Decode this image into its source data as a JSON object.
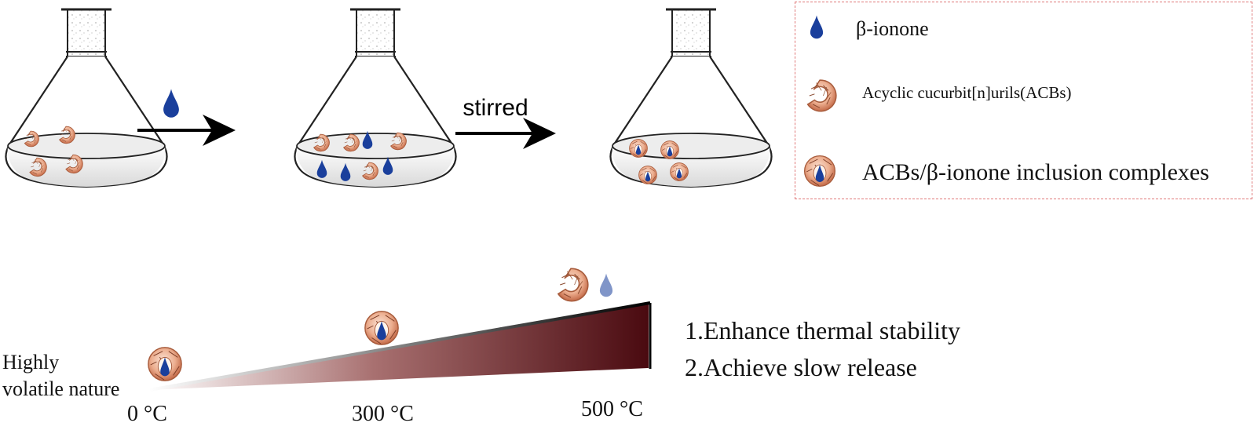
{
  "process": {
    "arrow1_label": "",
    "arrow2_label": "stirred"
  },
  "legend": {
    "items": [
      {
        "icon": "droplet-icon",
        "label": "β-ionone"
      },
      {
        "icon": "acb-ring-icon",
        "label": "Acyclic cucurbit[n]urils(ACBs)"
      },
      {
        "icon": "inclusion-complex-icon",
        "label": "ACBs/β-ionone inclusion complexes"
      }
    ]
  },
  "thermal": {
    "left_label_line1": "Highly",
    "left_label_line2": "volatile nature",
    "ticks": [
      {
        "value": 0,
        "label": "0 °C"
      },
      {
        "value": 300,
        "label": "300 °C"
      },
      {
        "value": 500,
        "label": "500 °C"
      }
    ],
    "benefits": [
      "1.Enhance thermal stability",
      "2.Achieve slow release"
    ]
  },
  "colors": {
    "droplet": "#1a3f9c",
    "droplet_light": "#7fa6d8",
    "ring": "#e8a888",
    "ring_edge": "#a85c3c",
    "gradient_dark": "#4a0a10",
    "gradient_light": "#ffffff",
    "legend_border": "#e07a7a"
  }
}
